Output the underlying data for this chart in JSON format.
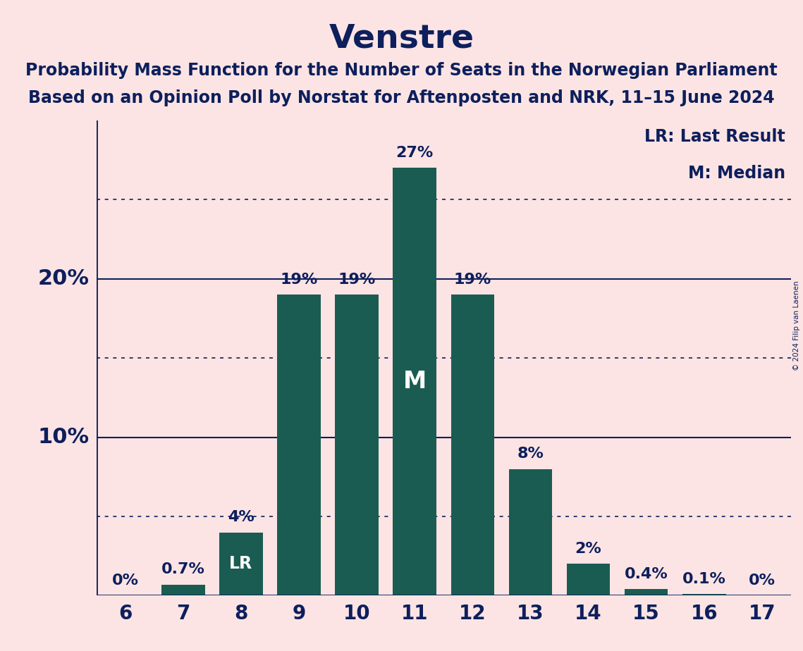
{
  "title": "Venstre",
  "subtitle1": "Probability Mass Function for the Number of Seats in the Norwegian Parliament",
  "subtitle2": "Based on an Opinion Poll by Norstat for Aftenposten and NRK, 11–15 June 2024",
  "copyright": "© 2024 Filip van Laenen",
  "seats": [
    6,
    7,
    8,
    9,
    10,
    11,
    12,
    13,
    14,
    15,
    16,
    17
  ],
  "probabilities": [
    0.0,
    0.7,
    4.0,
    19.0,
    19.0,
    27.0,
    19.0,
    8.0,
    2.0,
    0.4,
    0.1,
    0.0
  ],
  "bar_color": "#1a5c52",
  "background_color": "#fce4e4",
  "text_color": "#0d1f5c",
  "label_texts": [
    "0%",
    "0.7%",
    "4%",
    "19%",
    "19%",
    "27%",
    "19%",
    "8%",
    "2%",
    "0.4%",
    "0.1%",
    "0%"
  ],
  "median_seat": 11,
  "lr_seat": 8,
  "legend_lr": "LR: Last Result",
  "legend_m": "M: Median",
  "solid_yticks": [
    10,
    20
  ],
  "dotted_yticks": [
    5,
    15,
    25
  ],
  "ylim": [
    0,
    30
  ],
  "title_fontsize": 34,
  "subtitle_fontsize": 17,
  "axis_tick_fontsize": 20,
  "bar_label_fontsize": 16,
  "ylabel_fontsize": 22,
  "legend_fontsize": 17,
  "m_fontsize": 24,
  "lr_fontsize": 17
}
